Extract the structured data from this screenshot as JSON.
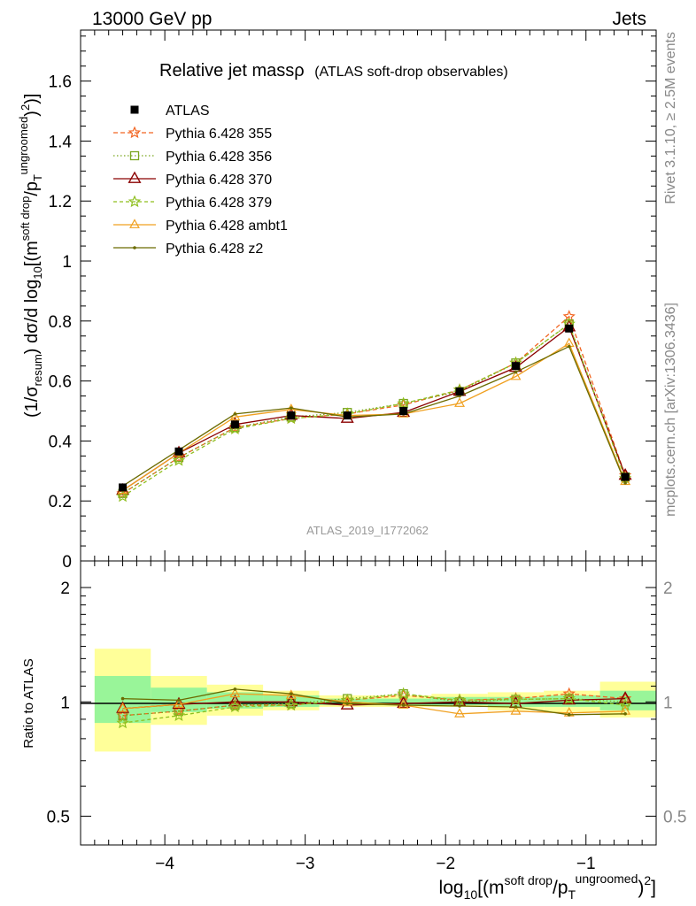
{
  "header": {
    "left": "13000 GeV pp",
    "right": "Jets"
  },
  "side_labels": {
    "rivet": "Rivet 3.1.10, ≥ 2.5M events",
    "mcplots": "mcplots.cern.ch [arXiv:1306.3436]"
  },
  "watermark": "ATLAS_2019_I1772062",
  "chart_data": [
    {
      "type": "line",
      "title_main": "Relative jet massρ",
      "title_sub": "(ATLAS soft-drop observables)",
      "ylabel": {
        "p1": "(1/σ",
        "sub1": "resum",
        "p2": ") dσ/d log",
        "sub2": "10",
        "p3": "[(m",
        "sup1": "soft drop",
        "p4": "/p",
        "sub3": "T",
        "sup2": "ungroomed",
        "p5": ")",
        "sup3": "2",
        "p6": ")]"
      },
      "xlim": [
        -4.6,
        -0.5
      ],
      "ylim": [
        0,
        1.77
      ],
      "y_ticks": [
        {
          "v": 0,
          "label": "0"
        },
        {
          "v": 0.2,
          "label": "0.2"
        },
        {
          "v": 0.4,
          "label": "0.4"
        },
        {
          "v": 0.6,
          "label": "0.6"
        },
        {
          "v": 0.8,
          "label": "0.8"
        },
        {
          "v": 1.0,
          "label": "1"
        },
        {
          "v": 1.2,
          "label": "1.2"
        },
        {
          "v": 1.4,
          "label": "1.4"
        },
        {
          "v": 1.6,
          "label": "1.6"
        }
      ],
      "bin_edges": [
        -4.5,
        -4.1,
        -3.7,
        -3.3,
        -2.9,
        -2.5,
        -2.1,
        -1.7,
        -1.3,
        -0.9,
        -0.5
      ],
      "x": [
        -4.3,
        -3.9,
        -3.5,
        -3.1,
        -2.7,
        -2.3,
        -1.9,
        -1.5,
        -1.12,
        -0.72
      ],
      "data": {
        "name": "ATLAS",
        "values": [
          0.245,
          0.365,
          0.455,
          0.485,
          0.485,
          0.5,
          0.565,
          0.65,
          0.775,
          0.28
        ],
        "color": "#000000"
      },
      "series": [
        {
          "name": "Pythia 6.428 355",
          "color": "#f26522",
          "dash": "5,3",
          "marker": "star",
          "values": [
            0.225,
            0.345,
            0.445,
            0.475,
            0.49,
            0.52,
            0.57,
            0.66,
            0.815,
            0.285
          ]
        },
        {
          "name": "Pythia 6.428 356",
          "color": "#7aa61f",
          "dash": "1.5,2.5",
          "marker": "square",
          "values": [
            0.225,
            0.345,
            0.445,
            0.48,
            0.495,
            0.525,
            0.565,
            0.66,
            0.79,
            0.28
          ]
        },
        {
          "name": "Pythia 6.428 370",
          "color": "#8b0000",
          "dash": "",
          "marker": "triangle",
          "values": [
            0.235,
            0.36,
            0.455,
            0.485,
            0.475,
            0.495,
            0.565,
            0.645,
            0.78,
            0.285
          ]
        },
        {
          "name": "Pythia 6.428 379",
          "color": "#8fbf1f",
          "dash": "4,3",
          "marker": "star",
          "values": [
            0.215,
            0.335,
            0.44,
            0.475,
            0.49,
            0.525,
            0.57,
            0.66,
            0.79,
            0.275
          ]
        },
        {
          "name": "Pythia 6.428 ambt1",
          "color": "#f0a020",
          "dash": "",
          "marker": "triangle-open",
          "values": [
            0.235,
            0.36,
            0.48,
            0.505,
            0.485,
            0.49,
            0.525,
            0.615,
            0.725,
            0.265
          ]
        },
        {
          "name": "Pythia 6.428 z2",
          "color": "#6b6b00",
          "dash": "",
          "marker": "dot",
          "values": [
            0.25,
            0.37,
            0.49,
            0.51,
            0.48,
            0.49,
            0.55,
            0.63,
            0.715,
            0.26
          ]
        }
      ]
    },
    {
      "type": "line",
      "ylabel": "Ratio to ATLAS",
      "xlabel": {
        "p1": "log",
        "sub1": "10",
        "p2": "[(m",
        "sup1": "soft drop",
        "p3": "/p",
        "sub2": "T",
        "sup2": "ungroomed",
        "p4": ")",
        "sup3": "2",
        "p5": "]"
      },
      "xlim": [
        -4.6,
        -0.5
      ],
      "ylim": [
        0.42,
        2.35
      ],
      "log_y": true,
      "y_ticks": [
        {
          "v": 0.5,
          "label": "0.5"
        },
        {
          "v": 1,
          "label": "1"
        },
        {
          "v": 2,
          "label": "2"
        }
      ],
      "x_ticks": [
        {
          "v": -4,
          "label": "−4"
        },
        {
          "v": -3,
          "label": "−3"
        },
        {
          "v": -2,
          "label": "−2"
        },
        {
          "v": -1,
          "label": "−1"
        }
      ],
      "band_inner": [
        [
          0.88,
          1.17
        ],
        [
          0.94,
          1.09
        ],
        [
          0.96,
          1.06
        ],
        [
          0.97,
          1.04
        ],
        [
          0.98,
          1.02
        ],
        [
          0.98,
          1.02
        ],
        [
          0.98,
          1.03
        ],
        [
          0.97,
          1.03
        ],
        [
          0.97,
          1.04
        ],
        [
          0.95,
          1.07
        ]
      ],
      "band_outer": [
        [
          0.74,
          1.38
        ],
        [
          0.87,
          1.17
        ],
        [
          0.92,
          1.11
        ],
        [
          0.95,
          1.07
        ],
        [
          0.97,
          1.04
        ],
        [
          0.97,
          1.04
        ],
        [
          0.97,
          1.05
        ],
        [
          0.95,
          1.06
        ],
        [
          0.94,
          1.07
        ],
        [
          0.91,
          1.13
        ]
      ],
      "ratios": [
        [
          0.92,
          0.945,
          0.98,
          0.98,
          1.01,
          1.04,
          1.01,
          1.02,
          1.05,
          1.02
        ],
        [
          0.92,
          0.945,
          0.98,
          0.99,
          1.02,
          1.05,
          1.0,
          1.015,
          1.02,
          1.0
        ],
        [
          0.96,
          0.985,
          1.0,
          1.0,
          0.98,
          0.99,
          1.0,
          0.99,
          1.01,
          1.02
        ],
        [
          0.88,
          0.92,
          0.97,
          0.98,
          1.01,
          1.05,
          1.01,
          1.015,
          1.02,
          0.98
        ],
        [
          0.96,
          0.985,
          1.05,
          1.04,
          1.0,
          0.98,
          0.93,
          0.945,
          0.935,
          0.945
        ],
        [
          1.02,
          1.01,
          1.08,
          1.05,
          0.99,
          0.98,
          0.975,
          0.97,
          0.925,
          0.93
        ]
      ]
    }
  ]
}
